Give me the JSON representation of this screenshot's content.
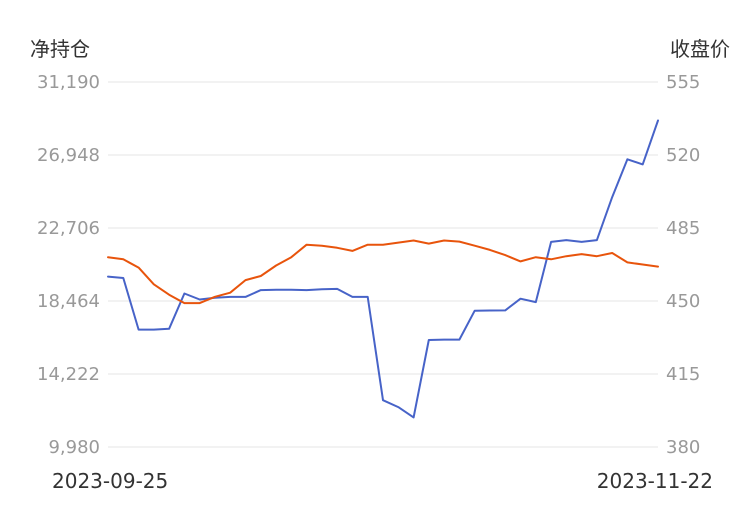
{
  "chart_data": {
    "type": "line",
    "left_axis_title": "净持仓",
    "right_axis_title": "收盘价",
    "left_ticks": [
      "31,190",
      "26,948",
      "22,706",
      "18,464",
      "14,222",
      "9,980"
    ],
    "right_ticks": [
      "555",
      "520",
      "485",
      "450",
      "415",
      "380"
    ],
    "left_ylim": [
      9980,
      31190
    ],
    "right_ylim": [
      380,
      555
    ],
    "x_start_label": "2023-09-25",
    "x_end_label": "2023-11-22",
    "grid": true,
    "series": [
      {
        "axis": "left",
        "color": "#4763c8",
        "values": [
          19880,
          19800,
          16800,
          16800,
          16850,
          18900,
          18550,
          18650,
          18700,
          18700,
          19100,
          19120,
          19120,
          19100,
          19150,
          19170,
          18700,
          18700,
          12700,
          12300,
          11700,
          16200,
          16220,
          16220,
          17900,
          17910,
          17920,
          18600,
          18400,
          21900,
          22000,
          21900,
          22000,
          24500,
          26700,
          26400,
          28950
        ]
      },
      {
        "axis": "right",
        "color": "#e8540c",
        "values": [
          471,
          470,
          466,
          458,
          453,
          449,
          449,
          452,
          454,
          460,
          462,
          467,
          471,
          477,
          476.5,
          475.5,
          474,
          477,
          477,
          478,
          479,
          477.5,
          479,
          478.5,
          476.5,
          474.5,
          472,
          469,
          471,
          470,
          471.5,
          472.5,
          471.5,
          473,
          468.5,
          467.5,
          466.5
        ]
      }
    ]
  }
}
